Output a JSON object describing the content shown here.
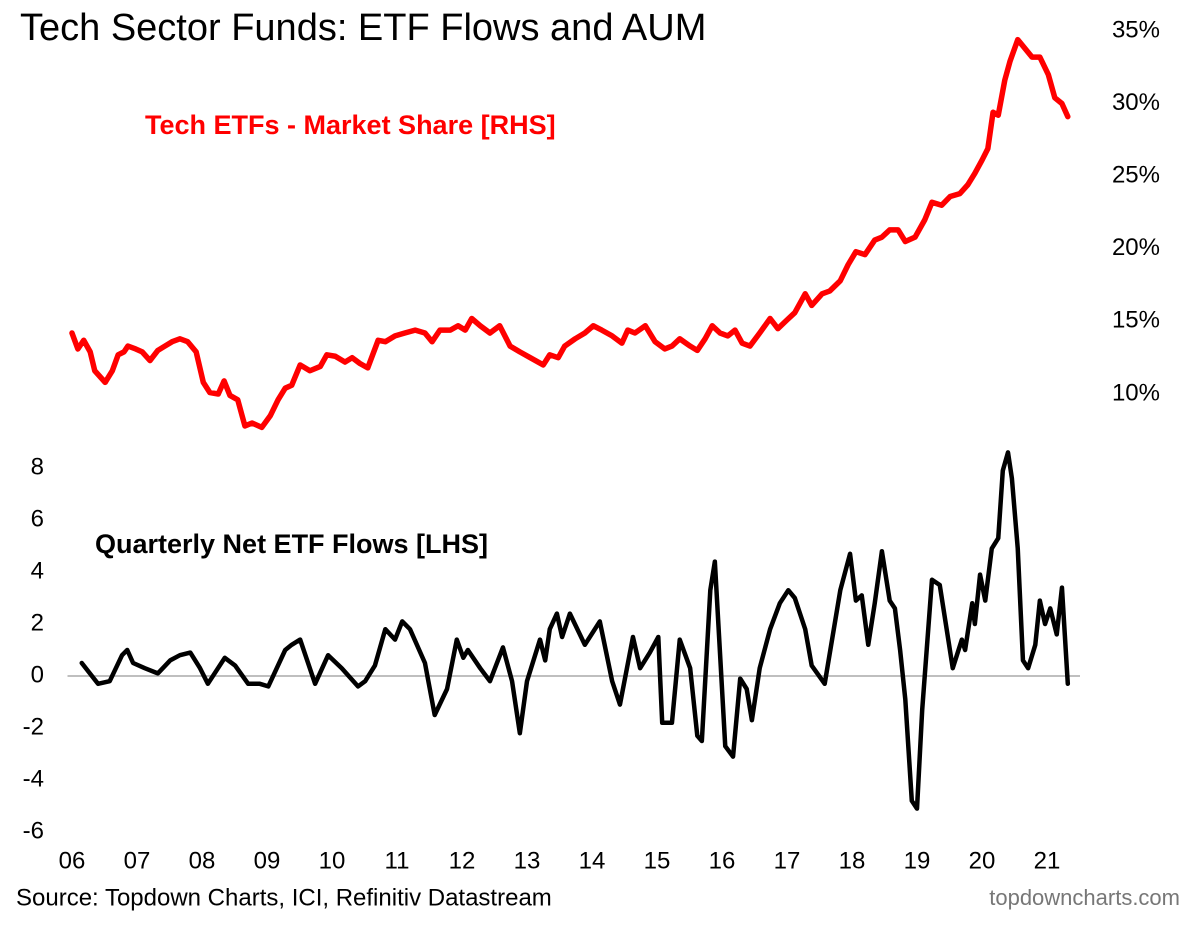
{
  "title": "Tech Sector Funds: ETF Flows and AUM",
  "source": "Source: Topdown Charts, ICI, Refinitiv Datastream",
  "credit": "topdowncharts.com",
  "chart_data": [
    {
      "type": "line",
      "yaxis": "right",
      "xlim": [
        2005.9,
        2022.0
      ],
      "ylim": [
        7.5,
        35.5
      ],
      "yticks": [
        {
          "value": 10,
          "label": "10%"
        },
        {
          "value": 15,
          "label": "15%"
        },
        {
          "value": 20,
          "label": "20%"
        },
        {
          "value": 25,
          "label": "25%"
        },
        {
          "value": 30,
          "label": "30%"
        },
        {
          "value": 35,
          "label": "35%"
        }
      ],
      "x": [
        2006,
        2006.09,
        2006.18,
        2006.28,
        2006.35,
        2006.51,
        2006.62,
        2006.71,
        2006.8,
        2006.86,
        2006.98,
        2007.08,
        2007.2,
        2007.32,
        2007.43,
        2007.54,
        2007.66,
        2007.78,
        2007.91,
        2008.02,
        2008.12,
        2008.25,
        2008.34,
        2008.43,
        2008.55,
        2008.66,
        2008.77,
        2008.92,
        2009.05,
        2009.17,
        2009.28,
        2009.38,
        2009.51,
        2009.66,
        2009.82,
        2009.92,
        2010.05,
        2010.2,
        2010.31,
        2010.43,
        2010.55,
        2010.71,
        2010.82,
        2010.97,
        2011.12,
        2011.28,
        2011.43,
        2011.54,
        2011.66,
        2011.82,
        2011.94,
        2012.05,
        2012.15,
        2012.28,
        2012.43,
        2012.58,
        2012.74,
        2012.89,
        2013.05,
        2013.25,
        2013.35,
        2013.48,
        2013.58,
        2013.74,
        2013.89,
        2014.02,
        2014.15,
        2014.31,
        2014.46,
        2014.55,
        2014.66,
        2014.82,
        2014.97,
        2015.12,
        2015.23,
        2015.35,
        2015.51,
        2015.62,
        2015.74,
        2015.85,
        2015.97,
        2016.09,
        2016.2,
        2016.31,
        2016.43,
        2016.58,
        2016.74,
        2016.86,
        2017,
        2017.12,
        2017.28,
        2017.38,
        2017.54,
        2017.66,
        2017.82,
        2017.94,
        2018.06,
        2018.2,
        2018.35,
        2018.46,
        2018.58,
        2018.71,
        2018.82,
        2018.97,
        2019.12,
        2019.23,
        2019.38,
        2019.51,
        2019.66,
        2019.78,
        2019.89,
        2020,
        2020.09,
        2020.17,
        2020.25,
        2020.35,
        2020.43,
        2020.55,
        2020.66,
        2020.77,
        2020.89,
        2021.02,
        2021.12,
        2021.23,
        2021.32
      ],
      "series": [
        {
          "name": "Tech ETFs - Market Share [RHS]",
          "color": "#ff0000",
          "values": [
            14.2,
            13.1,
            13.7,
            12.9,
            11.6,
            10.8,
            11.6,
            12.7,
            12.9,
            13.3,
            13.1,
            12.9,
            12.3,
            13.0,
            13.3,
            13.6,
            13.8,
            13.6,
            12.9,
            10.8,
            10.1,
            10.0,
            10.9,
            9.9,
            9.6,
            7.8,
            8.0,
            7.7,
            8.5,
            9.6,
            10.4,
            10.6,
            12.0,
            11.6,
            11.9,
            12.7,
            12.6,
            12.2,
            12.5,
            12.1,
            11.8,
            13.7,
            13.6,
            14.0,
            14.2,
            14.4,
            14.2,
            13.6,
            14.4,
            14.4,
            14.7,
            14.4,
            15.2,
            14.7,
            14.2,
            14.7,
            13.3,
            12.9,
            12.5,
            12.0,
            12.7,
            12.5,
            13.3,
            13.8,
            14.2,
            14.7,
            14.4,
            14.0,
            13.5,
            14.4,
            14.2,
            14.7,
            13.6,
            13.1,
            13.3,
            13.8,
            13.3,
            13.0,
            13.8,
            14.7,
            14.2,
            14.0,
            14.4,
            13.5,
            13.3,
            14.2,
            15.2,
            14.5,
            15.1,
            15.6,
            16.9,
            16.1,
            16.9,
            17.1,
            17.8,
            18.9,
            19.8,
            19.6,
            20.6,
            20.8,
            21.3,
            21.3,
            20.5,
            20.8,
            22.0,
            23.2,
            23.0,
            23.6,
            23.8,
            24.4,
            25.2,
            26.1,
            26.9,
            29.4,
            29.2,
            31.6,
            32.9,
            34.4,
            33.8,
            33.2,
            33.2,
            32.0,
            30.4,
            30.0,
            29.1
          ]
        }
      ]
    },
    {
      "type": "line",
      "yaxis": "left",
      "zero_line": true,
      "xlim": [
        2005.9,
        2022.0
      ],
      "ylim": [
        -6.5,
        9
      ],
      "xticks": [
        {
          "value": 2006,
          "label": "06"
        },
        {
          "value": 2007,
          "label": "07"
        },
        {
          "value": 2008,
          "label": "08"
        },
        {
          "value": 2009,
          "label": "09"
        },
        {
          "value": 2010,
          "label": "10"
        },
        {
          "value": 2011,
          "label": "11"
        },
        {
          "value": 2012,
          "label": "12"
        },
        {
          "value": 2013,
          "label": "13"
        },
        {
          "value": 2014,
          "label": "14"
        },
        {
          "value": 2015,
          "label": "15"
        },
        {
          "value": 2016,
          "label": "16"
        },
        {
          "value": 2017,
          "label": "17"
        },
        {
          "value": 2018,
          "label": "18"
        },
        {
          "value": 2019,
          "label": "19"
        },
        {
          "value": 2020,
          "label": "20"
        },
        {
          "value": 2021,
          "label": "21"
        }
      ],
      "yticks": [
        -6,
        -4,
        -2,
        0,
        2,
        4,
        6,
        8
      ],
      "x": [
        2006.15,
        2006.4,
        2006.58,
        2006.77,
        2006.85,
        2006.94,
        2007.12,
        2007.32,
        2007.51,
        2007.66,
        2007.82,
        2007.97,
        2008.09,
        2008.35,
        2008.51,
        2008.71,
        2008.89,
        2009.02,
        2009.28,
        2009.38,
        2009.51,
        2009.74,
        2009.94,
        2010.15,
        2010.4,
        2010.51,
        2010.66,
        2010.82,
        2010.97,
        2011.08,
        2011.2,
        2011.43,
        2011.58,
        2011.77,
        2011.92,
        2012.02,
        2012.09,
        2012.28,
        2012.43,
        2012.63,
        2012.77,
        2012.89,
        2013,
        2013.2,
        2013.28,
        2013.35,
        2013.46,
        2013.54,
        2013.66,
        2013.89,
        2014.12,
        2014.31,
        2014.43,
        2014.63,
        2014.74,
        2014.89,
        2015.02,
        2015.08,
        2015.23,
        2015.35,
        2015.51,
        2015.62,
        2015.69,
        2015.82,
        2015.89,
        2016.05,
        2016.17,
        2016.28,
        2016.38,
        2016.46,
        2016.58,
        2016.74,
        2016.89,
        2017.02,
        2017.12,
        2017.28,
        2017.38,
        2017.58,
        2017.82,
        2017.97,
        2018.06,
        2018.15,
        2018.25,
        2018.35,
        2018.46,
        2018.58,
        2018.66,
        2018.74,
        2018.82,
        2018.92,
        2019,
        2019.08,
        2019.23,
        2019.35,
        2019.55,
        2019.69,
        2019.74,
        2019.85,
        2019.89,
        2019.97,
        2020.05,
        2020.15,
        2020.25,
        2020.32,
        2020.4,
        2020.46,
        2020.55,
        2020.63,
        2020.71,
        2020.82,
        2020.89,
        2020.97,
        2021.05,
        2021.15,
        2021.23,
        2021.32
      ],
      "series": [
        {
          "name": "Quarterly Net ETF Flows [LHS]",
          "color": "#000000",
          "values": [
            0.5,
            -0.3,
            -0.2,
            0.8,
            1.0,
            0.5,
            0.3,
            0.1,
            0.6,
            0.8,
            0.9,
            0.3,
            -0.3,
            0.7,
            0.4,
            -0.3,
            -0.3,
            -0.4,
            1.0,
            1.2,
            1.4,
            -0.3,
            0.8,
            0.3,
            -0.4,
            -0.2,
            0.4,
            1.8,
            1.4,
            2.1,
            1.8,
            0.5,
            -1.5,
            -0.5,
            1.4,
            0.7,
            1.0,
            0.3,
            -0.2,
            1.1,
            -0.2,
            -2.2,
            -0.2,
            1.4,
            0.6,
            1.8,
            2.4,
            1.5,
            2.4,
            1.2,
            2.1,
            -0.2,
            -1.1,
            1.5,
            0.3,
            0.9,
            1.5,
            -1.8,
            -1.8,
            1.4,
            0.3,
            -2.3,
            -2.5,
            3.3,
            4.4,
            -2.7,
            -3.1,
            -0.1,
            -0.5,
            -1.7,
            0.3,
            1.8,
            2.8,
            3.3,
            3.0,
            1.8,
            0.4,
            -0.3,
            3.3,
            4.7,
            2.9,
            3.1,
            1.2,
            2.8,
            4.8,
            2.9,
            2.6,
            1.0,
            -0.9,
            -4.8,
            -5.1,
            -1.3,
            3.7,
            3.5,
            0.3,
            1.4,
            1.0,
            2.8,
            2.0,
            3.9,
            2.9,
            4.9,
            5.3,
            7.9,
            8.6,
            7.6,
            4.9,
            0.6,
            0.3,
            1.2,
            2.9,
            2.0,
            2.6,
            1.6,
            3.4,
            -0.3
          ]
        }
      ]
    }
  ]
}
